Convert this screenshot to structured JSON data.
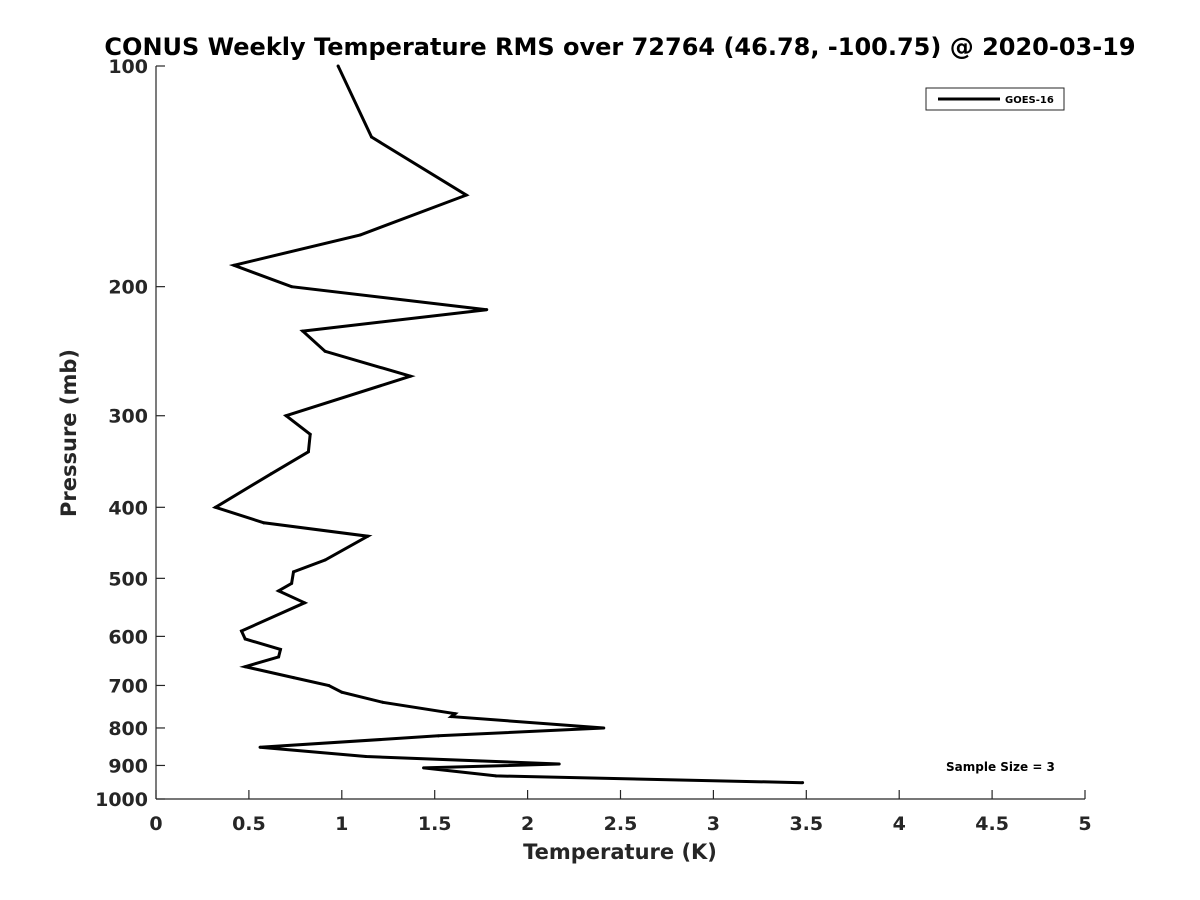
{
  "chart_data": {
    "type": "line",
    "title": "CONUS Weekly Temperature RMS over 72764 (46.78, -100.75) @ 2020-03-19",
    "xlabel": "Temperature (K)",
    "ylabel": "Pressure (mb)",
    "xlim": [
      0,
      5
    ],
    "ylim": [
      100,
      1000
    ],
    "y_scale": "log",
    "y_direction": "reversed",
    "x_ticks": [
      "0",
      "0.5",
      "1",
      "1.5",
      "2",
      "2.5",
      "3",
      "3.5",
      "4",
      "4.5",
      "5"
    ],
    "x_tick_values": [
      0,
      0.5,
      1,
      1.5,
      2,
      2.5,
      3,
      3.5,
      4,
      4.5,
      5
    ],
    "y_ticks": [
      "100",
      "200",
      "300",
      "400",
      "500",
      "600",
      "700",
      "800",
      "900",
      "1000"
    ],
    "y_tick_values": [
      100,
      200,
      300,
      400,
      500,
      600,
      700,
      800,
      900,
      1000
    ],
    "grid": false,
    "legend_position": "top-right",
    "annotation": "Sample Size = 3",
    "series": [
      {
        "name": "GOES-16",
        "color": "#000000",
        "points": [
          [
            0.98,
            100
          ],
          [
            1.16,
            125
          ],
          [
            1.67,
            150
          ],
          [
            1.1,
            170
          ],
          [
            0.42,
            187
          ],
          [
            0.73,
            200
          ],
          [
            1.78,
            215
          ],
          [
            0.79,
            230
          ],
          [
            0.91,
            245
          ],
          [
            1.37,
            265
          ],
          [
            0.7,
            300
          ],
          [
            0.83,
            318
          ],
          [
            0.82,
            336
          ],
          [
            0.62,
            360
          ],
          [
            0.32,
            400
          ],
          [
            0.58,
            420
          ],
          [
            1.14,
            438
          ],
          [
            0.91,
            472
          ],
          [
            0.74,
            490
          ],
          [
            0.73,
            508
          ],
          [
            0.66,
            520
          ],
          [
            0.8,
            540
          ],
          [
            0.46,
            590
          ],
          [
            0.48,
            605
          ],
          [
            0.67,
            625
          ],
          [
            0.66,
            640
          ],
          [
            0.48,
            660
          ],
          [
            0.74,
            683
          ],
          [
            0.93,
            700
          ],
          [
            1.0,
            715
          ],
          [
            1.22,
            738
          ],
          [
            1.61,
            765
          ],
          [
            1.59,
            772
          ],
          [
            2.41,
            800
          ],
          [
            1.52,
            820
          ],
          [
            0.56,
            850
          ],
          [
            1.13,
            875
          ],
          [
            2.17,
            896
          ],
          [
            1.44,
            907
          ],
          [
            1.83,
            930
          ],
          [
            3.48,
            950
          ]
        ]
      }
    ]
  }
}
